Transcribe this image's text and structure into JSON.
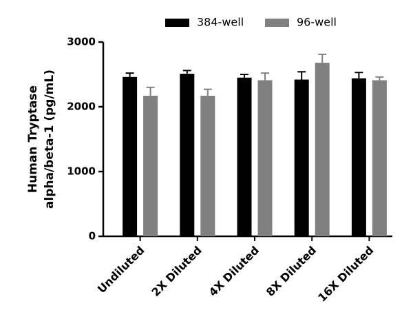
{
  "chart_data": {
    "type": "bar",
    "ylabel": [
      "Human Tryptase",
      "alpha/beta-1 (pg/mL)"
    ],
    "categories": [
      "Undiluted",
      "2X Diluted",
      "4X Diluted",
      "8X Diluted",
      "16X Diluted"
    ],
    "series": [
      {
        "name": "384-well",
        "color": "#000000",
        "values": [
          2460,
          2510,
          2450,
          2420,
          2440
        ],
        "errors": [
          60,
          50,
          50,
          120,
          90
        ]
      },
      {
        "name": "96-well",
        "color": "#808080",
        "values": [
          2170,
          2170,
          2410,
          2680,
          2410
        ],
        "errors": [
          130,
          100,
          110,
          130,
          50
        ]
      }
    ],
    "ylim": [
      0,
      3000
    ],
    "yticks": [
      0,
      1000,
      2000,
      3000
    ],
    "grid": false,
    "legend": "top"
  }
}
